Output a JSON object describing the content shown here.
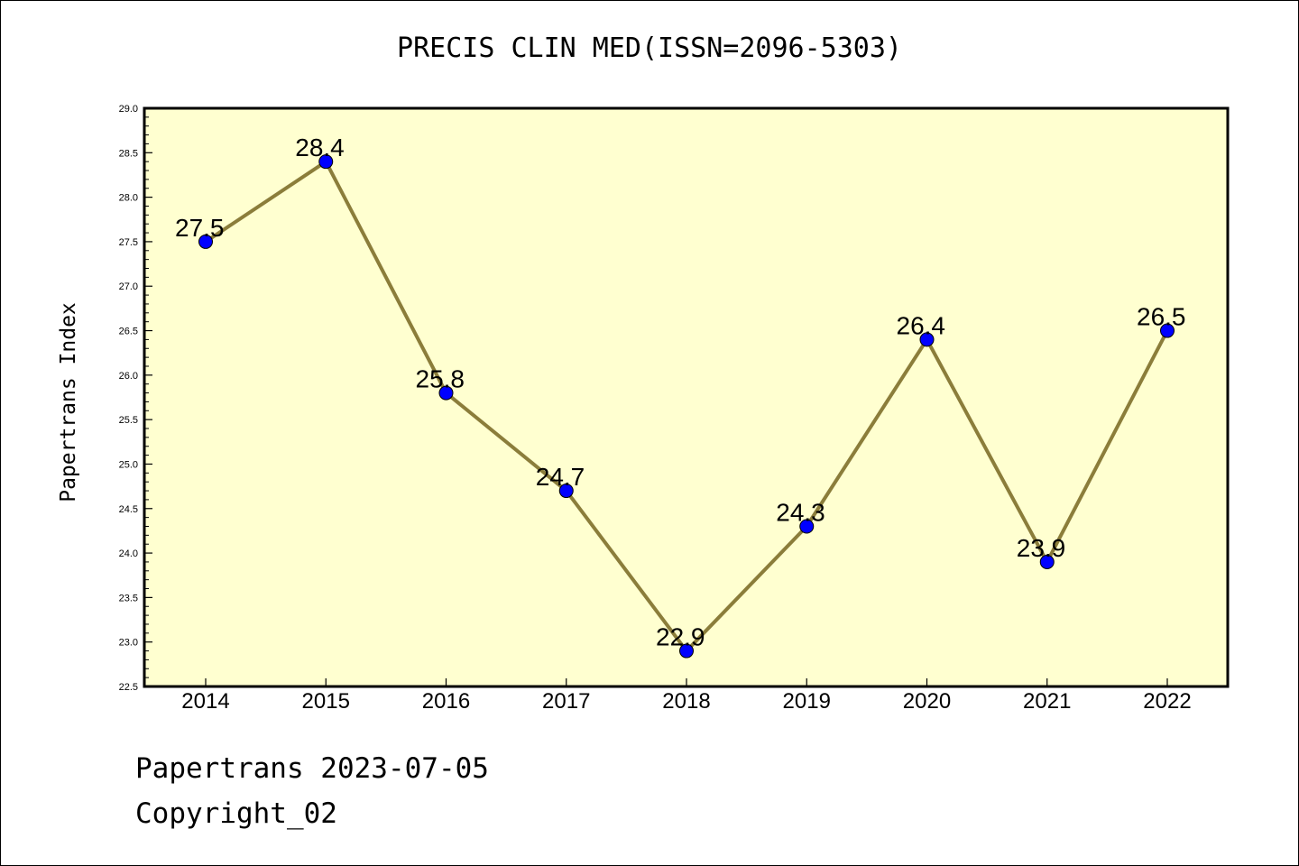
{
  "chart_data": {
    "type": "line",
    "title": "PRECIS CLIN MED(ISSN=2096-5303)",
    "xlabel": "",
    "ylabel": "Papertrans Index",
    "categories": [
      "2014",
      "2015",
      "2016",
      "2017",
      "2018",
      "2019",
      "2020",
      "2021",
      "2022"
    ],
    "series": [
      {
        "values": [
          27.5,
          28.4,
          25.8,
          24.7,
          22.9,
          24.3,
          26.4,
          23.9,
          26.5
        ]
      }
    ],
    "data_labels": [
      "27.5",
      "28.4",
      "25.8",
      "24.7",
      "22.9",
      "24.3",
      "26.4",
      "23.9",
      "26.5"
    ],
    "ylim": [
      22.5,
      29.0
    ],
    "yticks": [
      "22.5",
      "23.0",
      "23.5",
      "24.0",
      "24.5",
      "25.0",
      "25.5",
      "26.0",
      "26.5",
      "27.0",
      "27.5",
      "28.0",
      "28.5",
      "29.0"
    ],
    "ytick_values": [
      22.5,
      23.0,
      23.5,
      24.0,
      24.5,
      25.0,
      25.5,
      26.0,
      26.5,
      27.0,
      27.5,
      28.0,
      28.5,
      29.0
    ],
    "grid": false,
    "colors": {
      "plot_background": "#ffffd0",
      "line": "#8b7d3a",
      "marker": "#0000ff"
    }
  },
  "footer": {
    "line1": "Papertrans 2023-07-05",
    "line2": "Copyright_02"
  }
}
